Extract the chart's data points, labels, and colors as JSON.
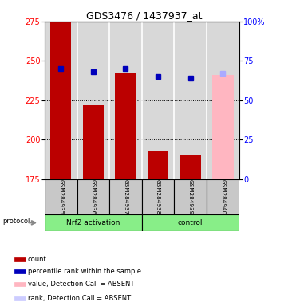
{
  "title": "GDS3476 / 1437937_at",
  "samples": [
    "GSM284935",
    "GSM284936",
    "GSM284937",
    "GSM284938",
    "GSM284939",
    "GSM284940"
  ],
  "red_values": [
    275,
    222,
    242,
    193,
    190,
    241
  ],
  "blue_percentiles": [
    70,
    68,
    70,
    65,
    64,
    67
  ],
  "absent_flags": [
    false,
    false,
    false,
    false,
    false,
    true
  ],
  "y_min": 175,
  "y_max": 275,
  "y_ticks": [
    175,
    200,
    225,
    250,
    275
  ],
  "y2_ticks": [
    0,
    25,
    50,
    75,
    100
  ],
  "bar_color_present": "#BB0000",
  "bar_color_absent": "#FFB6C1",
  "dot_color_present": "#0000BB",
  "dot_color_absent": "#AAAAFF",
  "bg_color": "#D8D8D8",
  "group1_label": "Nrf2 activation",
  "group2_label": "control",
  "group_color": "#88EE88",
  "protocol_label": "protocol",
  "legend_items": [
    {
      "color": "#BB0000",
      "label": "count",
      "shape": "square"
    },
    {
      "color": "#0000BB",
      "label": "percentile rank within the sample",
      "shape": "square"
    },
    {
      "color": "#FFB6C1",
      "label": "value, Detection Call = ABSENT",
      "shape": "square"
    },
    {
      "color": "#CCCCFF",
      "label": "rank, Detection Call = ABSENT",
      "shape": "square"
    }
  ]
}
